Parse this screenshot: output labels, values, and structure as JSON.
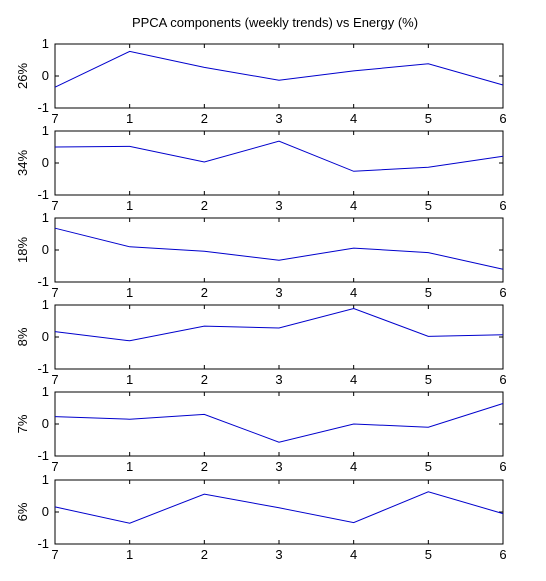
{
  "figure": {
    "title": "PPCA components (weekly trends) vs Energy (%)"
  },
  "chart_data": [
    {
      "type": "line",
      "ylabel": "26%",
      "x_ticks": [
        "7",
        "1",
        "2",
        "3",
        "4",
        "5",
        "6"
      ],
      "y_ticks": [
        "1",
        "0",
        "-1"
      ],
      "ylim": [
        -1,
        1
      ],
      "line_color": "#0000cc",
      "series": [
        {
          "values": [
            -0.35,
            0.77,
            0.27,
            -0.13,
            0.16,
            0.38,
            -0.28
          ]
        }
      ]
    },
    {
      "type": "line",
      "ylabel": "34%",
      "x_ticks": [
        "7",
        "1",
        "2",
        "3",
        "4",
        "5",
        "6"
      ],
      "y_ticks": [
        "1",
        "0",
        "-1"
      ],
      "ylim": [
        -1,
        1
      ],
      "line_color": "#0000cc",
      "series": [
        {
          "values": [
            0.5,
            0.52,
            0.03,
            0.68,
            -0.26,
            -0.13,
            0.21
          ]
        }
      ]
    },
    {
      "type": "line",
      "ylabel": "18%",
      "x_ticks": [
        "7",
        "1",
        "2",
        "3",
        "4",
        "5",
        "6"
      ],
      "y_ticks": [
        "1",
        "0",
        "-1"
      ],
      "ylim": [
        -1,
        1
      ],
      "line_color": "#0000cc",
      "series": [
        {
          "values": [
            0.68,
            0.1,
            -0.04,
            -0.32,
            0.06,
            -0.08,
            -0.6
          ]
        }
      ]
    },
    {
      "type": "line",
      "ylabel": "8%",
      "x_ticks": [
        "7",
        "1",
        "2",
        "3",
        "4",
        "5",
        "6"
      ],
      "y_ticks": [
        "1",
        "0",
        "-1"
      ],
      "ylim": [
        -1,
        1
      ],
      "line_color": "#0000cc",
      "series": [
        {
          "values": [
            0.17,
            -0.12,
            0.34,
            0.28,
            0.89,
            0.02,
            0.07
          ]
        }
      ]
    },
    {
      "type": "line",
      "ylabel": "7%",
      "x_ticks": [
        "7",
        "1",
        "2",
        "3",
        "4",
        "5",
        "6"
      ],
      "y_ticks": [
        "1",
        "0",
        "-1"
      ],
      "ylim": [
        -1,
        1
      ],
      "line_color": "#0000cc",
      "series": [
        {
          "values": [
            0.23,
            0.15,
            0.3,
            -0.57,
            0.0,
            -0.1,
            0.64
          ]
        }
      ]
    },
    {
      "type": "line",
      "ylabel": "6%",
      "x_ticks": [
        "7",
        "1",
        "2",
        "3",
        "4",
        "5",
        "6"
      ],
      "y_ticks": [
        "1",
        "0",
        "-1"
      ],
      "ylim": [
        -1,
        1
      ],
      "line_color": "#0000cc",
      "series": [
        {
          "values": [
            0.16,
            -0.35,
            0.56,
            0.13,
            -0.33,
            0.63,
            -0.05
          ]
        }
      ]
    }
  ]
}
